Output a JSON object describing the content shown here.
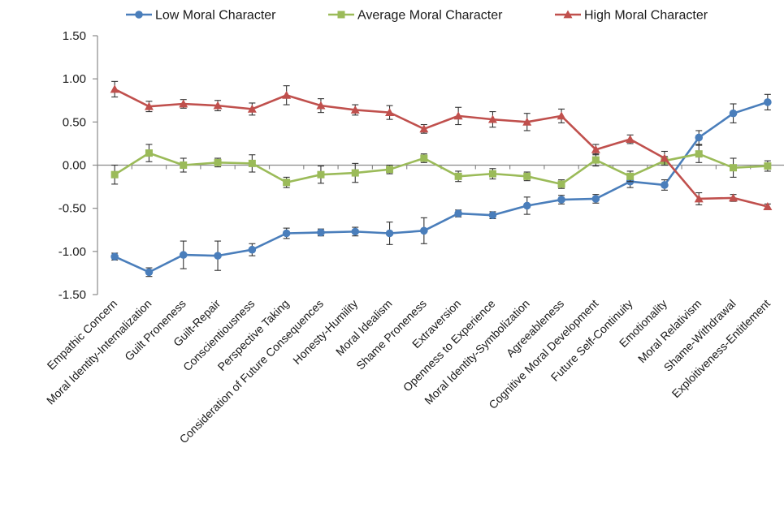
{
  "chart_data": {
    "type": "line",
    "categories": [
      "Empathic Concern",
      "Moral Identity-Internalization",
      "Guilt Proneness",
      "Guilt-Repair",
      "Conscientiousness",
      "Perspective Taking",
      "Consideration of Future Consequences",
      "Honesty-Humility",
      "Moral Idealism",
      "Shame Proneness",
      "Extraversion",
      "Openness to Experience",
      "Moral Identity-Symbolization",
      "Agreeableness",
      "Cognitive Moral Development",
      "Future Self-Continuity",
      "Emotionality",
      "Moral Relativism",
      "Shame-Withdrawal",
      "Exploitiveness-Entitlement"
    ],
    "series": [
      {
        "name": "Low Moral Character",
        "color": "#4a7ebb",
        "marker": "circle",
        "values": [
          -1.06,
          -1.24,
          -1.04,
          -1.05,
          -0.98,
          -0.79,
          -0.78,
          -0.77,
          -0.79,
          -0.76,
          -0.56,
          -0.58,
          -0.47,
          -0.4,
          -0.39,
          -0.19,
          -0.23,
          0.32,
          0.6,
          0.73
        ],
        "errors": [
          0.04,
          0.05,
          0.16,
          0.17,
          0.07,
          0.06,
          0.04,
          0.05,
          0.13,
          0.15,
          0.04,
          0.04,
          0.1,
          0.05,
          0.05,
          0.07,
          0.06,
          0.08,
          0.11,
          0.09
        ]
      },
      {
        "name": "Average Moral Character",
        "color": "#9bbb59",
        "marker": "square",
        "values": [
          -0.11,
          0.14,
          0.0,
          0.03,
          0.02,
          -0.2,
          -0.11,
          -0.09,
          -0.05,
          0.08,
          -0.13,
          -0.1,
          -0.13,
          -0.22,
          0.06,
          -0.13,
          0.05,
          0.13,
          -0.03,
          -0.01
        ],
        "errors": [
          0.11,
          0.1,
          0.08,
          0.05,
          0.1,
          0.06,
          0.1,
          0.11,
          0.05,
          0.05,
          0.06,
          0.06,
          0.05,
          0.05,
          0.07,
          0.06,
          0.05,
          0.1,
          0.11,
          0.06
        ]
      },
      {
        "name": "High Moral Character",
        "color": "#c0504d",
        "marker": "triangle",
        "values": [
          0.88,
          0.68,
          0.71,
          0.69,
          0.65,
          0.81,
          0.69,
          0.64,
          0.61,
          0.42,
          0.57,
          0.53,
          0.5,
          0.57,
          0.18,
          0.3,
          0.08,
          -0.39,
          -0.38,
          -0.48
        ],
        "errors": [
          0.09,
          0.06,
          0.05,
          0.06,
          0.07,
          0.11,
          0.08,
          0.06,
          0.08,
          0.05,
          0.1,
          0.09,
          0.1,
          0.08,
          0.06,
          0.05,
          0.08,
          0.07,
          0.04,
          0.03
        ]
      }
    ],
    "yticks": [
      "1.50",
      "1.00",
      "0.50",
      "0.00",
      "-0.50",
      "-1.00",
      "-1.50"
    ],
    "ylim": [
      -1.5,
      1.5
    ],
    "grid": false,
    "legend_position": "top",
    "title": "",
    "xlabel": "",
    "ylabel": ""
  }
}
